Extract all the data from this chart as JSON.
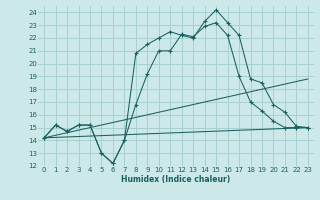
{
  "xlabel": "Humidex (Indice chaleur)",
  "xlim": [
    -0.5,
    23.5
  ],
  "ylim": [
    12,
    24.5
  ],
  "yticks": [
    12,
    13,
    14,
    15,
    16,
    17,
    18,
    19,
    20,
    21,
    22,
    23,
    24
  ],
  "xticks": [
    0,
    1,
    2,
    3,
    4,
    5,
    6,
    7,
    8,
    9,
    10,
    11,
    12,
    13,
    14,
    15,
    16,
    17,
    18,
    19,
    20,
    21,
    22,
    23
  ],
  "bg_color": "#cce8e8",
  "grid_color": "#a8d0d0",
  "line_color": "#1a6060",
  "lines": [
    {
      "x": [
        0,
        1,
        2,
        3,
        4,
        5,
        6,
        7,
        8,
        9,
        10,
        11,
        12,
        13,
        14,
        15,
        16,
        17,
        18,
        19,
        20,
        21,
        22,
        23
      ],
      "y": [
        14.2,
        15.2,
        14.7,
        15.2,
        15.2,
        13.0,
        12.2,
        14.0,
        16.8,
        19.2,
        21.0,
        21.0,
        22.3,
        22.1,
        22.9,
        23.2,
        22.2,
        19.0,
        17.0,
        16.3,
        15.5,
        15.0,
        15.0,
        15.0
      ],
      "marker": "+",
      "linestyle": "-",
      "ms": 3.5
    },
    {
      "x": [
        0,
        1,
        2,
        3,
        4,
        5,
        6,
        7,
        8,
        9,
        10,
        11,
        12,
        13,
        14,
        15,
        16,
        17,
        18,
        19,
        20,
        21,
        22,
        23
      ],
      "y": [
        14.2,
        15.2,
        14.7,
        15.2,
        15.2,
        13.0,
        12.2,
        14.0,
        20.8,
        21.5,
        22.0,
        22.5,
        22.2,
        22.0,
        23.3,
        24.2,
        23.2,
        22.2,
        18.8,
        18.5,
        16.8,
        16.2,
        15.1,
        15.0
      ],
      "marker": "+",
      "linestyle": "-",
      "ms": 3.5
    },
    {
      "x": [
        0,
        23
      ],
      "y": [
        14.2,
        18.8
      ],
      "marker": null,
      "linestyle": "-",
      "ms": 0
    },
    {
      "x": [
        0,
        23
      ],
      "y": [
        14.2,
        15.0
      ],
      "marker": null,
      "linestyle": "-",
      "ms": 0
    }
  ]
}
